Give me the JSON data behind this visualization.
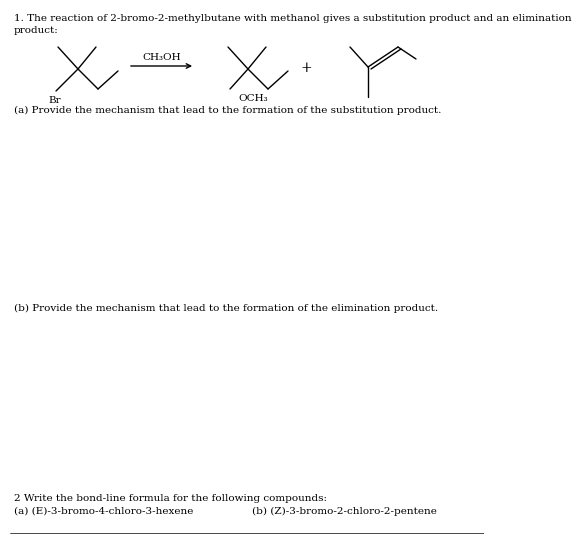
{
  "title_line1": "1. The reaction of 2-bromo-2-methylbutane with methanol gives a substitution product and an elimination",
  "title_line2": "product:",
  "reagent_label": "CH₃OH",
  "part_a_label": "(a) Provide the mechanism that lead to the formation of the substitution product.",
  "part_b_label": "(b) Provide the mechanism that lead to the formation of the elimination product.",
  "footer_line1": "2 Write the bond-line formula for the following compounds:",
  "footer_line2a": "(a) (E)-3-bromo-4-chloro-3-hexene",
  "footer_line2b": "(b) (Z)-3-bromo-2-chloro-2-pentene",
  "bg_color": "#ffffff",
  "text_color": "#000000",
  "font_size": 7.5
}
